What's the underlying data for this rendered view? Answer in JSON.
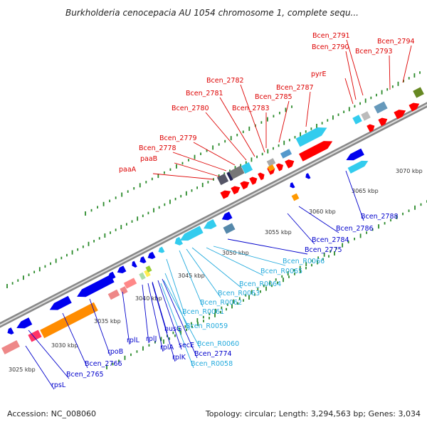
{
  "title": "Burkholderia cenocepacia AU 1054 chromosome 1, complete sequ...",
  "footer": {
    "accession": "Accession: NC_008060",
    "summary": "Topology: circular; Length: 3,294,563 bp; Genes: 3,034"
  },
  "ticks": [
    "3025 kbp",
    "3030 kbp",
    "3035 kbp",
    "3040 kbp",
    "3045 kbp",
    "3050 kbp",
    "3055 kbp",
    "3060 kbp",
    "3065 kbp",
    "3070 kbp"
  ],
  "labels_red": [
    "Bcen_2791",
    "Bcen_2794",
    "Bcen_2790",
    "Bcen_2793",
    "pyrE",
    "Bcen_2782",
    "Bcen_2781",
    "Bcen_2787",
    "Bcen_2785",
    "Bcen_2780",
    "Bcen_2783",
    "Bcen_2779",
    "Bcen_2778",
    "paaB",
    "paaA"
  ],
  "labels_blue": [
    "Bcen_2788",
    "Bcen_2786",
    "Bcen_2784",
    "Bcen_2775",
    "nusG",
    "rplL",
    "rpoB",
    "rplJ",
    "rplA",
    "secE",
    "Bcen_2774",
    "rplK",
    "Bcen_2766",
    "Bcen_2765",
    "rpsL"
  ],
  "labels_cyan": [
    "Bcen_R0066",
    "Bcen_R0065",
    "Bcen_R0064",
    "Bcen_R0063",
    "Bcen_R0062",
    "Bcen_R0061",
    "Bcen_R0059",
    "Bcen_R0060",
    "Bcen_R0058"
  ],
  "colors": {
    "forward_cds": "#ff0000",
    "reverse_cds": "#0000ee",
    "rna": "#33ccee",
    "backbone": "#999999",
    "label_red": "#dd0000",
    "label_blue": "#0000cc",
    "label_cyan": "#22aadd",
    "gc_skew": "#2a8a2a"
  }
}
